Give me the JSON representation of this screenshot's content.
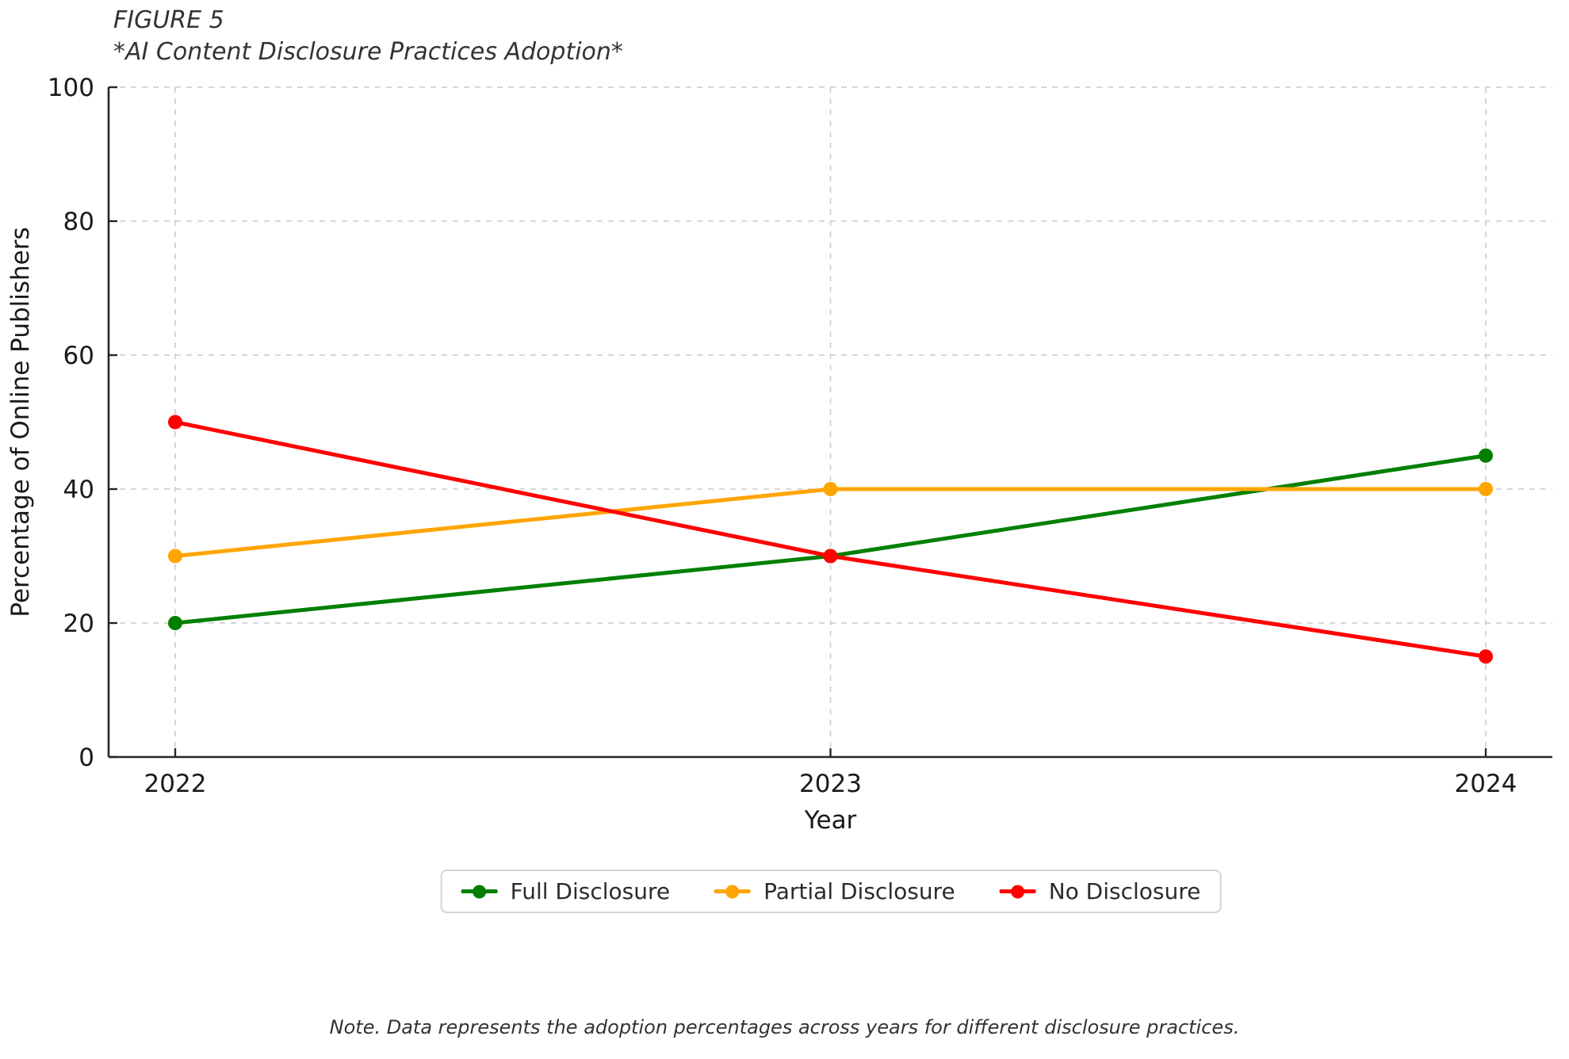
{
  "figure": {
    "label": "FIGURE 5",
    "title": "*AI Content Disclosure Practices Adoption*"
  },
  "chart_data": {
    "type": "line",
    "categories": [
      "2022",
      "2023",
      "2024"
    ],
    "series": [
      {
        "name": "Full Disclosure",
        "color": "#008000",
        "values": [
          20,
          30,
          45
        ]
      },
      {
        "name": "Partial Disclosure",
        "color": "#FFA500",
        "values": [
          30,
          40,
          40
        ]
      },
      {
        "name": "No Disclosure",
        "color": "#FF0000",
        "values": [
          50,
          30,
          15
        ]
      }
    ],
    "xlabel": "Year",
    "ylabel": "Percentage of Online Publishers",
    "ylim": [
      0,
      100
    ],
    "yticks": [
      0,
      20,
      40,
      60,
      80,
      100
    ],
    "grid": true,
    "grid_style": "dashed",
    "legend_position": "bottom-center",
    "colors": {
      "grid": "#cccccc",
      "spine": "#262626",
      "tick_label": "#1a1a1a"
    }
  },
  "note": "Note. Data represents the adoption percentages across years for different disclosure practices."
}
